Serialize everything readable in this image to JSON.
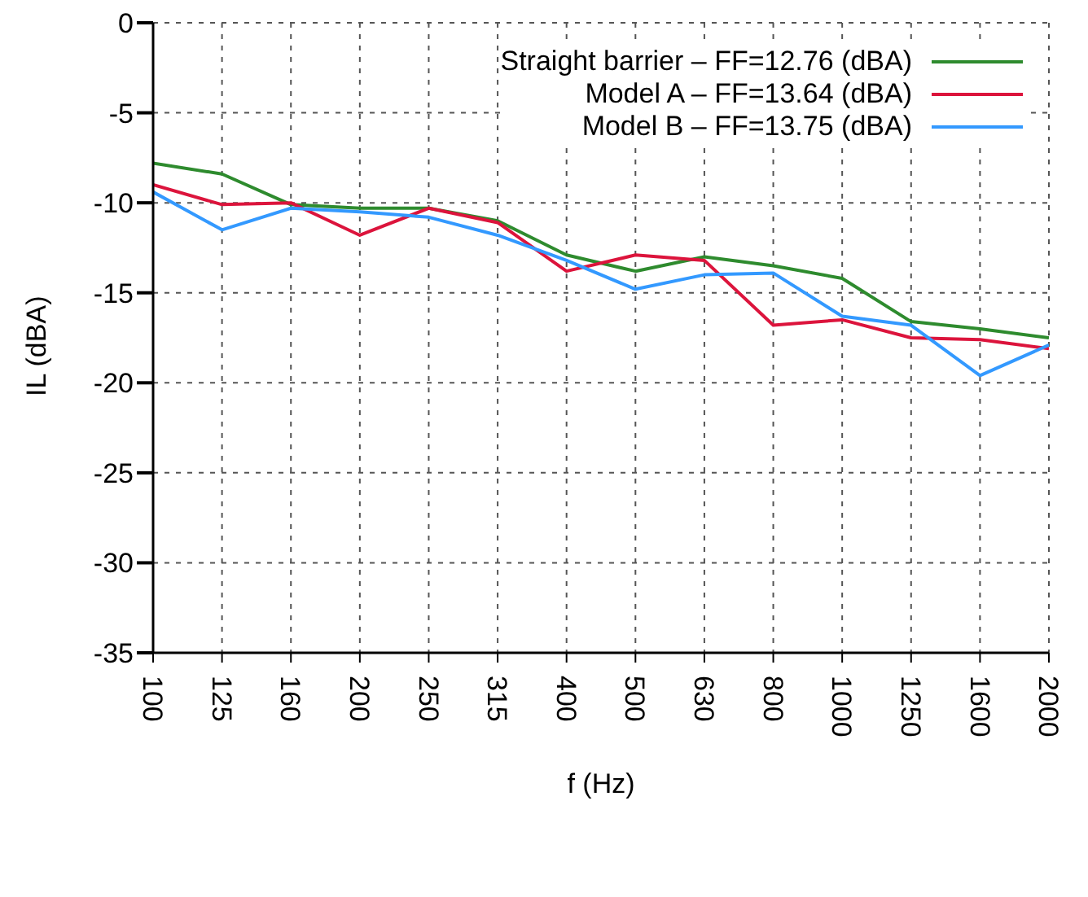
{
  "chart_data": {
    "type": "line",
    "xlabel": "f (Hz)",
    "ylabel": "IL (dBA)",
    "categories": [
      "100",
      "125",
      "160",
      "200",
      "250",
      "315",
      "400",
      "500",
      "630",
      "800",
      "1000",
      "1250",
      "1600",
      "2000"
    ],
    "ylim": [
      -35,
      0
    ],
    "yticks": [
      -35,
      -30,
      -25,
      -20,
      -15,
      -10,
      -5,
      0
    ],
    "grid": true,
    "legend": "top right",
    "marker": "none",
    "line_style": "solid",
    "series": [
      {
        "name": "Straight barrier – FF=12.76 (dBA)",
        "color": "#2e8b2e",
        "values": [
          -7.8,
          -8.4,
          -10.1,
          -10.3,
          -10.3,
          -11.0,
          -12.9,
          -13.8,
          -13.0,
          -13.5,
          -14.2,
          -16.6,
          -17.0,
          -17.5
        ]
      },
      {
        "name": "Model A – FF=13.64 (dBA)",
        "color": "#dc143c",
        "values": [
          -9.0,
          -10.1,
          -10.0,
          -11.8,
          -10.3,
          -11.1,
          -13.8,
          -12.9,
          -13.2,
          -16.8,
          -16.5,
          -17.5,
          -17.6,
          -18.1
        ]
      },
      {
        "name": "Model B – FF=13.75 (dBA)",
        "color": "#3399ff",
        "values": [
          -9.4,
          -11.5,
          -10.3,
          -10.5,
          -10.8,
          -11.8,
          -13.2,
          -14.8,
          -14.0,
          -13.9,
          -16.3,
          -16.8,
          -19.6,
          -17.9
        ]
      }
    ]
  }
}
